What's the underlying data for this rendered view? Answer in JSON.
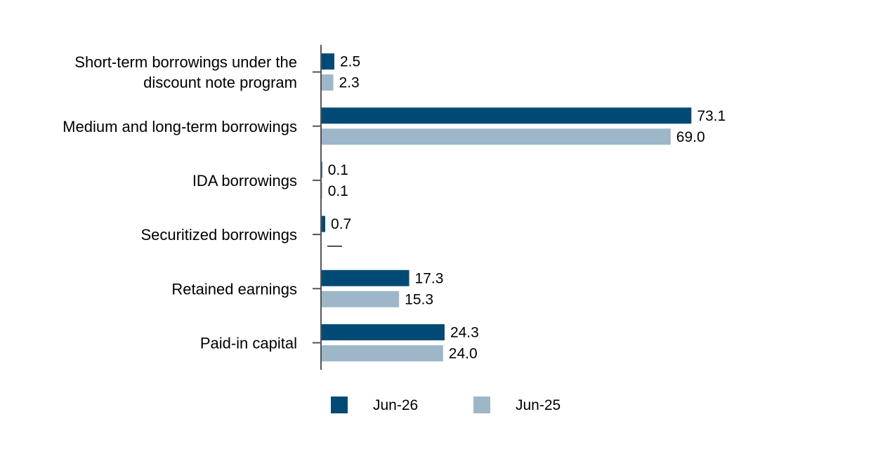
{
  "chart_data": {
    "type": "bar",
    "orientation": "horizontal",
    "categories": [
      [
        "Short-term borrowings under the",
        "discount note program"
      ],
      [
        "Medium and long-term borrowings"
      ],
      [
        "IDA borrowings"
      ],
      [
        "Securitized borrowings"
      ],
      [
        "Retained earnings"
      ],
      [
        "Paid-in capital"
      ]
    ],
    "series": [
      {
        "name": "Jun-26",
        "color": "#004a75",
        "values": [
          2.5,
          73.1,
          0.1,
          0.7,
          17.3,
          24.3
        ],
        "labels": [
          "2.5",
          "73.1",
          "0.1",
          "0.7",
          "17.3",
          "24.3"
        ]
      },
      {
        "name": "Jun-25",
        "color": "#9db7c8",
        "values": [
          2.3,
          69.0,
          0.1,
          null,
          15.3,
          24.0
        ],
        "labels": [
          "2.3",
          "69.0",
          "0.1",
          "—",
          "15.3",
          "24.0"
        ]
      }
    ],
    "xlim": [
      0,
      80
    ],
    "grid": false,
    "legend_position": "bottom"
  }
}
